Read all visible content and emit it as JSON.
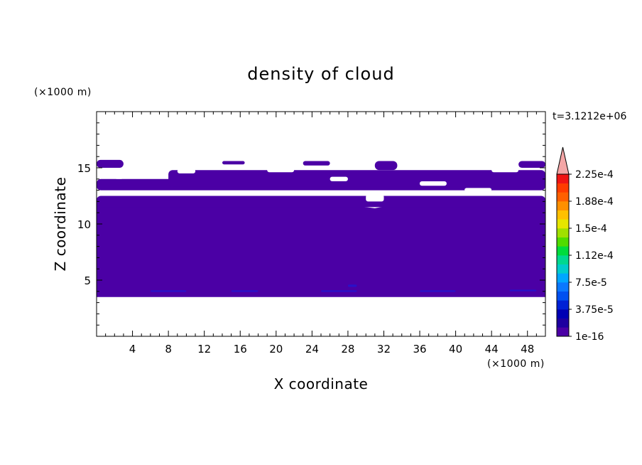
{
  "chart_data": {
    "type": "contour",
    "title": "density of cloud",
    "xlabel": "X coordinate",
    "ylabel": "Z coordinate",
    "x_unit": "(×1000 m)",
    "y_unit": "(×1000 m)",
    "time_label": "t=3.1212e+06",
    "xlim": [
      0,
      50
    ],
    "ylim": [
      0,
      20
    ],
    "x_ticks": [
      4,
      8,
      12,
      16,
      20,
      24,
      28,
      32,
      36,
      40,
      44,
      48
    ],
    "y_ticks": [
      5,
      10,
      15
    ],
    "fill_color": "#4b00a5",
    "cloud_region": {
      "z_bottom": 3.5,
      "z_top_continuous": 12,
      "upper_bands": [
        {
          "x": [
            0,
            50
          ],
          "z": [
            11.5,
            12.5
          ]
        },
        {
          "x": [
            0,
            50
          ],
          "z": [
            13,
            14
          ]
        },
        {
          "x": [
            8,
            50
          ],
          "z": [
            13.3,
            14.8
          ]
        },
        {
          "x": [
            0,
            3
          ],
          "z": [
            15,
            15.7
          ]
        },
        {
          "x": [
            14,
            16.5
          ],
          "z": [
            15.3,
            15.6
          ]
        },
        {
          "x": [
            23,
            26
          ],
          "z": [
            15.2,
            15.6
          ]
        },
        {
          "x": [
            31,
            33.5
          ],
          "z": [
            14.8,
            15.6
          ]
        },
        {
          "x": [
            47,
            50
          ],
          "z": [
            15,
            15.6
          ]
        }
      ]
    },
    "colorbar": {
      "labels": [
        "2.25e-4",
        "1.88e-4",
        "1.5e-4",
        "1.12e-4",
        "7.5e-5",
        "3.75e-5",
        "1e-16"
      ],
      "colors": [
        "#4b00a5",
        "#1e00a0",
        "#0000b4",
        "#0020d6",
        "#0050f0",
        "#0a78ff",
        "#00a6ff",
        "#00cccc",
        "#00d890",
        "#00dc3c",
        "#50dc00",
        "#a0e000",
        "#e6e600",
        "#ffc000",
        "#ff9000",
        "#ff6000",
        "#ff3c00",
        "#f01414"
      ],
      "extend_color": "#f4a6a6"
    }
  }
}
